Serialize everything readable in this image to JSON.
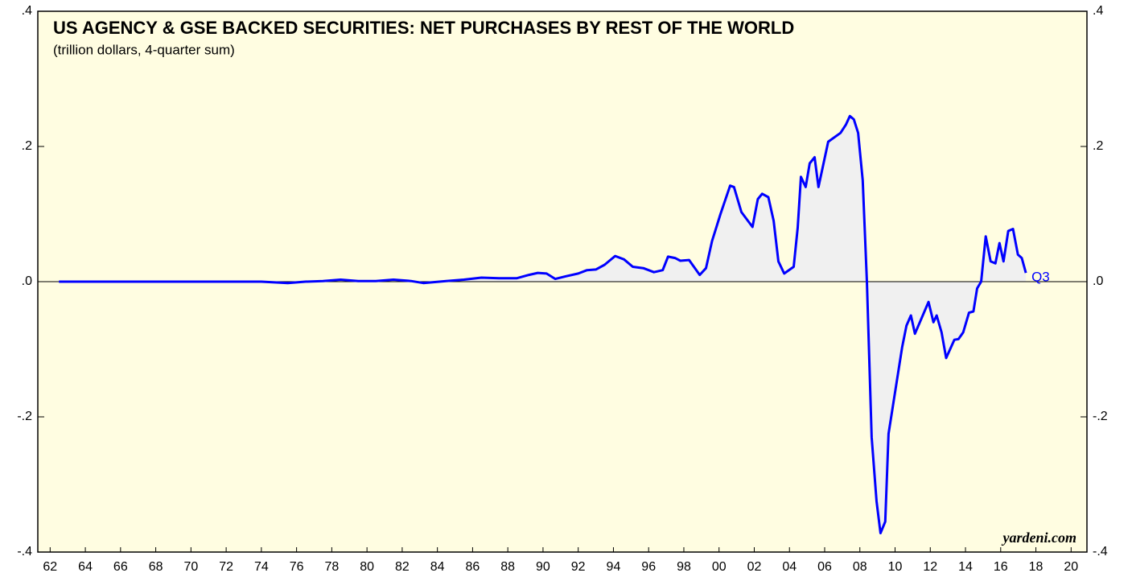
{
  "chart_data": {
    "type": "line",
    "title": "US AGENCY & GSE BACKED SECURITIES: NET PURCHASES BY REST OF THE WORLD",
    "subtitle": "(trillion dollars, 4-quarter sum)",
    "source": "yardeni.com",
    "annotation": "Q3",
    "xlim": [
      1961.3,
      2020.9
    ],
    "xticks": [
      {
        "value": 1962,
        "label": "62"
      },
      {
        "value": 1964,
        "label": "64"
      },
      {
        "value": 1966,
        "label": "66"
      },
      {
        "value": 1968,
        "label": "68"
      },
      {
        "value": 1970,
        "label": "70"
      },
      {
        "value": 1972,
        "label": "72"
      },
      {
        "value": 1974,
        "label": "74"
      },
      {
        "value": 1976,
        "label": "76"
      },
      {
        "value": 1978,
        "label": "78"
      },
      {
        "value": 1980,
        "label": "80"
      },
      {
        "value": 1982,
        "label": "82"
      },
      {
        "value": 1984,
        "label": "84"
      },
      {
        "value": 1986,
        "label": "86"
      },
      {
        "value": 1988,
        "label": "88"
      },
      {
        "value": 1990,
        "label": "90"
      },
      {
        "value": 1992,
        "label": "92"
      },
      {
        "value": 1994,
        "label": "94"
      },
      {
        "value": 1996,
        "label": "96"
      },
      {
        "value": 1998,
        "label": "98"
      },
      {
        "value": 2000,
        "label": "00"
      },
      {
        "value": 2002,
        "label": "02"
      },
      {
        "value": 2004,
        "label": "04"
      },
      {
        "value": 2006,
        "label": "06"
      },
      {
        "value": 2008,
        "label": "08"
      },
      {
        "value": 2010,
        "label": "10"
      },
      {
        "value": 2012,
        "label": "12"
      },
      {
        "value": 2014,
        "label": "14"
      },
      {
        "value": 2016,
        "label": "16"
      },
      {
        "value": 2018,
        "label": "18"
      },
      {
        "value": 2020,
        "label": "20"
      }
    ],
    "ylim": [
      -0.4,
      0.4
    ],
    "yticks": [
      {
        "value": -0.4,
        "label": "-.4"
      },
      {
        "value": -0.2,
        "label": "-.2"
      },
      {
        "value": 0,
        "label": ".0"
      },
      {
        "value": 0.2,
        "label": ".2"
      },
      {
        "value": 0.4,
        "label": ".4"
      }
    ],
    "y2lim": [
      -0.4,
      0.4
    ],
    "y2ticks": [
      {
        "value": -0.4,
        "label": "-.4"
      },
      {
        "value": -0.2,
        "label": "-.2"
      },
      {
        "value": 0,
        "label": ".0"
      },
      {
        "value": 0.2,
        "label": ".2"
      },
      {
        "value": 0.4,
        "label": ".4"
      }
    ],
    "background": "#fffde1",
    "fill": "#f0f0f0",
    "series": [
      {
        "color": "#0000ff",
        "x": [
          1962.5,
          1965,
          1970,
          1974,
          1975.5,
          1976.5,
          1977.5,
          1978.5,
          1979.5,
          1980.5,
          1981.5,
          1982.5,
          1983.2,
          1984.5,
          1985.5,
          1986.5,
          1987.5,
          1988.5,
          1989.2,
          1989.7,
          1990.2,
          1990.7,
          1991.3,
          1992,
          1992.5,
          1993,
          1993.5,
          1994.1,
          1994.6,
          1995.1,
          1995.7,
          1996.3,
          1996.8,
          1997.1,
          1997.5,
          1997.8,
          1998.3,
          1998.9,
          1999.26,
          1999.6,
          2000.08,
          2000.63,
          2000.85,
          2001.27,
          2001.9,
          2002.2,
          2002.45,
          2002.8,
          2003.1,
          2003.37,
          2003.7,
          2004.24,
          2004.47,
          2004.65,
          2004.92,
          2005.15,
          2005.43,
          2005.65,
          2006.2,
          2006.9,
          2007.2,
          2007.43,
          2007.66,
          2007.9,
          2008.16,
          2008.4,
          2008.67,
          2008.95,
          2009.17,
          2009.44,
          2009.63,
          2010.08,
          2010.4,
          2010.65,
          2010.9,
          2011.13,
          2011.9,
          2012.18,
          2012.36,
          2012.64,
          2012.9,
          2013.37,
          2013.6,
          2013.87,
          2014.2,
          2014.45,
          2014.66,
          2014.89,
          2015.15,
          2015.43,
          2015.7,
          2015.93,
          2016.16,
          2016.43,
          2016.7,
          2016.98,
          2017.2,
          2017.43
        ],
        "values": [
          0,
          0,
          0,
          0,
          -0.002,
          0.0,
          0.001,
          0.003,
          0.001,
          0.001,
          0.003,
          0.001,
          -0.002,
          0.001,
          0.003,
          0.006,
          0.005,
          0.005,
          0.01,
          0.013,
          0.012,
          0.004,
          0.008,
          0.012,
          0.017,
          0.018,
          0.025,
          0.038,
          0.033,
          0.022,
          0.02,
          0.014,
          0.017,
          0.037,
          0.035,
          0.031,
          0.032,
          0.01,
          0.02,
          0.06,
          0.1,
          0.142,
          0.14,
          0.103,
          0.081,
          0.122,
          0.13,
          0.125,
          0.09,
          0.03,
          0.012,
          0.022,
          0.08,
          0.155,
          0.14,
          0.175,
          0.184,
          0.14,
          0.207,
          0.22,
          0.232,
          0.245,
          0.24,
          0.22,
          0.15,
          0.0,
          -0.23,
          -0.325,
          -0.372,
          -0.355,
          -0.225,
          -0.15,
          -0.097,
          -0.065,
          -0.05,
          -0.077,
          -0.03,
          -0.06,
          -0.05,
          -0.075,
          -0.113,
          -0.086,
          -0.085,
          -0.075,
          -0.046,
          -0.044,
          -0.01,
          0.0,
          0.067,
          0.03,
          0.027,
          0.057,
          0.03,
          0.075,
          0.078,
          0.04,
          0.035,
          0.013
        ]
      }
    ]
  }
}
